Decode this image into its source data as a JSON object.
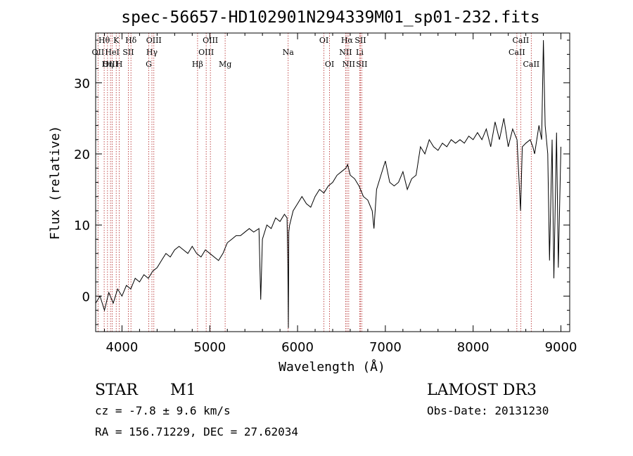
{
  "colors": {
    "background": "#ffffff",
    "ink": "#000000",
    "line_marker": "#b22222"
  },
  "chart_data": {
    "type": "line",
    "title": "spec-56657-HD102901N294339M01_sp01-232.fits",
    "xlabel": "Wavelength (Å)",
    "ylabel": "Flux (relative)",
    "xlim": [
      3700,
      9100
    ],
    "ylim": [
      -5,
      37
    ],
    "x_ticks": [
      4000,
      5000,
      6000,
      7000,
      8000,
      9000
    ],
    "x_tick_labels": [
      "4000",
      "5000",
      "6000",
      "7000",
      "8000",
      "9000"
    ],
    "y_ticks": [
      0,
      10,
      20,
      30
    ],
    "y_tick_labels": [
      "0",
      "10",
      "20",
      "30"
    ],
    "series": [
      {
        "name": "flux",
        "x": [
          3700,
          3750,
          3800,
          3850,
          3900,
          3950,
          4000,
          4050,
          4100,
          4150,
          4200,
          4250,
          4300,
          4350,
          4400,
          4450,
          4500,
          4550,
          4600,
          4650,
          4700,
          4750,
          4800,
          4850,
          4900,
          4950,
          5000,
          5050,
          5100,
          5150,
          5200,
          5250,
          5300,
          5350,
          5400,
          5450,
          5500,
          5560,
          5580,
          5600,
          5650,
          5700,
          5750,
          5800,
          5850,
          5880,
          5890,
          5895,
          5900,
          5910,
          5950,
          6000,
          6050,
          6100,
          6150,
          6200,
          6250,
          6300,
          6350,
          6400,
          6450,
          6500,
          6550,
          6570,
          6600,
          6650,
          6700,
          6750,
          6800,
          6850,
          6870,
          6900,
          6950,
          7000,
          7050,
          7100,
          7150,
          7200,
          7250,
          7300,
          7350,
          7400,
          7450,
          7500,
          7550,
          7600,
          7650,
          7700,
          7750,
          7800,
          7850,
          7900,
          7950,
          8000,
          8050,
          8100,
          8150,
          8200,
          8250,
          8300,
          8350,
          8400,
          8450,
          8500,
          8540,
          8560,
          8600,
          8650,
          8680,
          8700,
          8750,
          8780,
          8800,
          8820,
          8850,
          8870,
          8900,
          8920,
          8950,
          8970,
          9000
        ],
        "y": [
          -1,
          0,
          -2,
          0.5,
          -1,
          1,
          0,
          1.5,
          1,
          2.5,
          2,
          3,
          2.5,
          3.5,
          4,
          5,
          6,
          5.5,
          6.5,
          7,
          6.5,
          6,
          7,
          6,
          5.5,
          6.5,
          6,
          5.5,
          5,
          6,
          7.5,
          8,
          8.5,
          8.5,
          9,
          9.5,
          9,
          9.5,
          -0.5,
          8,
          10,
          9.5,
          11,
          10.5,
          11.5,
          11,
          4,
          -4.5,
          9,
          10,
          12,
          13,
          14,
          13,
          12.5,
          14,
          15,
          14.5,
          15.5,
          16,
          17,
          17.5,
          18,
          18.5,
          17,
          16.5,
          15.5,
          14,
          13.5,
          12,
          9.5,
          15,
          17,
          19,
          16,
          15.5,
          16,
          17.5,
          15,
          16.5,
          17,
          21,
          20,
          22,
          21,
          20.5,
          21.5,
          21,
          22,
          21.5,
          22,
          21.5,
          22.5,
          22,
          23,
          22,
          23.5,
          21,
          24.5,
          22,
          25,
          21,
          23.5,
          22,
          12,
          21,
          21.5,
          22,
          21,
          20,
          24,
          22,
          36,
          24,
          20,
          5,
          22,
          2.5,
          23,
          4,
          21
        ]
      }
    ],
    "line_labels": [
      {
        "text": "Hθ",
        "wavelength": 3797,
        "row": 1
      },
      {
        "text": "OII",
        "wavelength": 3727,
        "row": 2
      },
      {
        "text": "OIII",
        "wavelength": 3869,
        "row": 3
      },
      {
        "text": "K",
        "wavelength": 3934,
        "row": 1
      },
      {
        "text": "HeI",
        "wavelength": 3889,
        "row": 2
      },
      {
        "text": "Hη",
        "wavelength": 3835,
        "row": 3
      },
      {
        "text": "SII",
        "wavelength": 4072,
        "row": 2
      },
      {
        "text": "H",
        "wavelength": 3969,
        "row": 3
      },
      {
        "text": "Hδ",
        "wavelength": 4102,
        "row": 1
      },
      {
        "text": "OIII",
        "wavelength": 4363,
        "row": 1
      },
      {
        "text": "Hγ",
        "wavelength": 4341,
        "row": 2
      },
      {
        "text": "G",
        "wavelength": 4305,
        "row": 3
      },
      {
        "text": "OIII",
        "wavelength": 5007,
        "row": 1
      },
      {
        "text": "OIII",
        "wavelength": 4959,
        "row": 2
      },
      {
        "text": "Hβ",
        "wavelength": 4861,
        "row": 3
      },
      {
        "text": "Mg",
        "wavelength": 5175,
        "row": 3
      },
      {
        "text": "Na",
        "wavelength": 5893,
        "row": 2
      },
      {
        "text": "OI",
        "wavelength": 6300,
        "row": 1
      },
      {
        "text": "OI",
        "wavelength": 6364,
        "row": 3
      },
      {
        "text": "Hα",
        "wavelength": 6563,
        "row": 1
      },
      {
        "text": "SII",
        "wavelength": 6716,
        "row": 1
      },
      {
        "text": "NII",
        "wavelength": 6548,
        "row": 2
      },
      {
        "text": "Li",
        "wavelength": 6708,
        "row": 2
      },
      {
        "text": "NII",
        "wavelength": 6583,
        "row": 3
      },
      {
        "text": "SII",
        "wavelength": 6731,
        "row": 3
      },
      {
        "text": "CaII",
        "wavelength": 8542,
        "row": 1
      },
      {
        "text": "CaII",
        "wavelength": 8498,
        "row": 2
      },
      {
        "text": "CaII",
        "wavelength": 8662,
        "row": 3
      }
    ],
    "marker_wavelengths": [
      3727,
      3797,
      3835,
      3869,
      3889,
      3934,
      3969,
      4072,
      4102,
      4305,
      4341,
      4363,
      4861,
      4959,
      5007,
      5175,
      5893,
      6300,
      6364,
      6548,
      6563,
      6583,
      6708,
      6716,
      6731,
      8498,
      8542,
      8662
    ]
  },
  "info": {
    "object_class": "STAR",
    "subclass": "M1",
    "survey": "LAMOST DR3",
    "redshift_line": "cz = -7.8 ± 9.6 km/s",
    "obs_date": "Obs-Date: 20131230",
    "coords": "RA = 156.71229, DEC =  27.62034"
  }
}
